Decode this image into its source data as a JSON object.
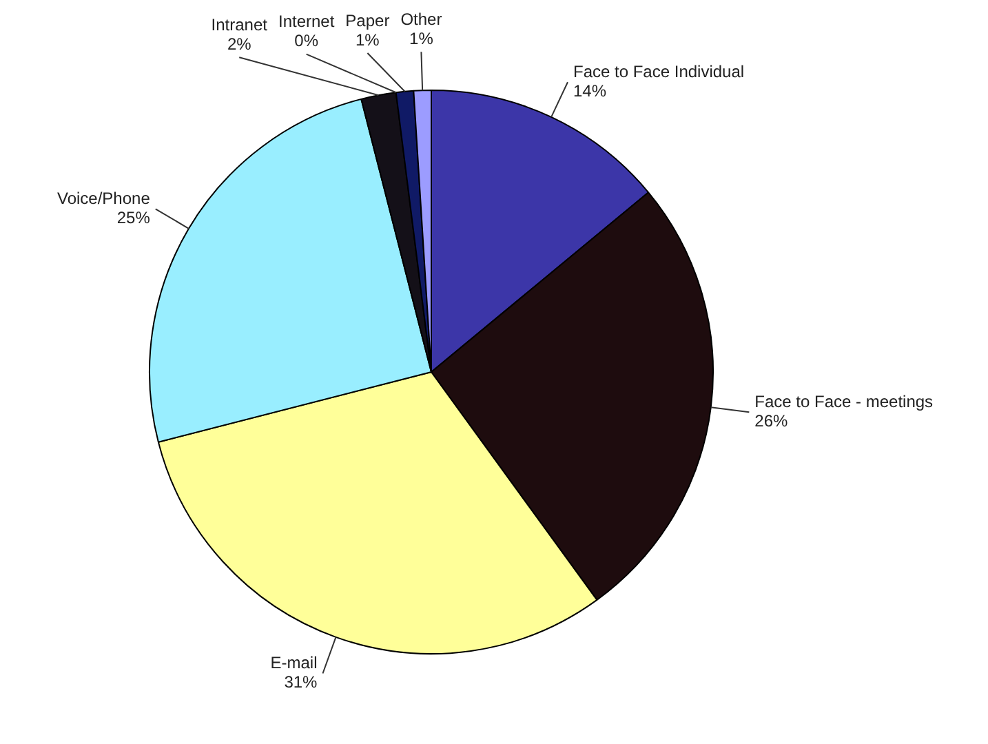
{
  "chart_data": {
    "type": "pie",
    "categories": [
      "Face to Face Individual",
      "Face to Face - meetings",
      "E-mail",
      "Voice/Phone",
      "Intranet",
      "Internet",
      "Paper",
      "Other"
    ],
    "values": [
      14,
      26,
      31,
      25,
      2,
      0,
      1,
      1
    ],
    "value_labels": [
      "14%",
      "26%",
      "31%",
      "25%",
      "2%",
      "0%",
      "1%",
      "1%"
    ],
    "colors": [
      "#3c36a8",
      "#1e0c0e",
      "#ffff99",
      "#99eeff",
      "#141018",
      "#2a2a66",
      "#101a66",
      "#9c9cff"
    ],
    "legend": false
  }
}
